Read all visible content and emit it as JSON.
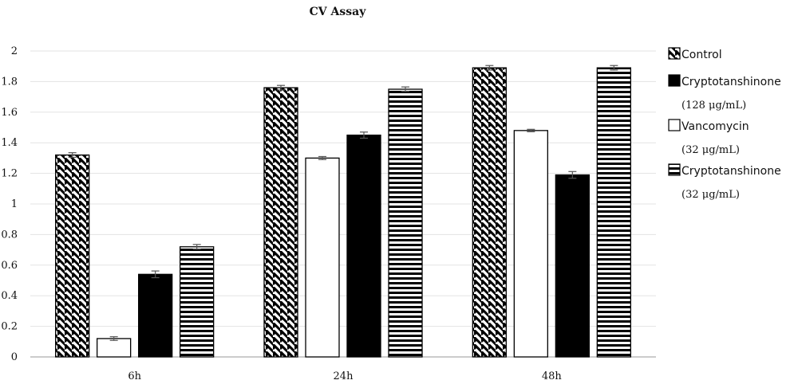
{
  "chart_data": {
    "type": "bar",
    "title": "CV Assay",
    "categories": [
      "6h",
      "24h",
      "48h"
    ],
    "ylim": [
      0,
      2
    ],
    "yticks": [
      "0",
      "0.2",
      "0.4",
      "0.6",
      "0.8",
      "1",
      "1.2",
      "1.4",
      "1.6",
      "1.8",
      "2"
    ],
    "grid": true,
    "legend_position": "right",
    "series": [
      {
        "name": "Control",
        "pattern": "diagonal",
        "values": [
          1.32,
          1.76,
          1.89
        ],
        "errors": [
          0.015,
          0.015,
          0.015
        ]
      },
      {
        "name": "Vancomycin",
        "sub": "(32 μg/mL)",
        "pattern": "white",
        "values": [
          0.12,
          1.3,
          1.48
        ],
        "errors": [
          0.012,
          0.01,
          0.008
        ]
      },
      {
        "name": "Cryptotanshinone",
        "sub": "(128 μg/mL)",
        "pattern": "black",
        "values": [
          0.54,
          1.45,
          1.19
        ],
        "errors": [
          0.022,
          0.02,
          0.022
        ]
      },
      {
        "name": "Cryptotanshinone",
        "sub": "(32 μg/mL)",
        "pattern": "horizontal",
        "values": [
          0.72,
          1.75,
          1.89
        ],
        "errors": [
          0.015,
          0.015,
          0.015
        ]
      }
    ],
    "legend_order": [
      0,
      2,
      1,
      3
    ]
  },
  "colors": {
    "bar_stroke": "#000000",
    "grid": "#e3e3e3",
    "axis": "#9a9a9a"
  }
}
